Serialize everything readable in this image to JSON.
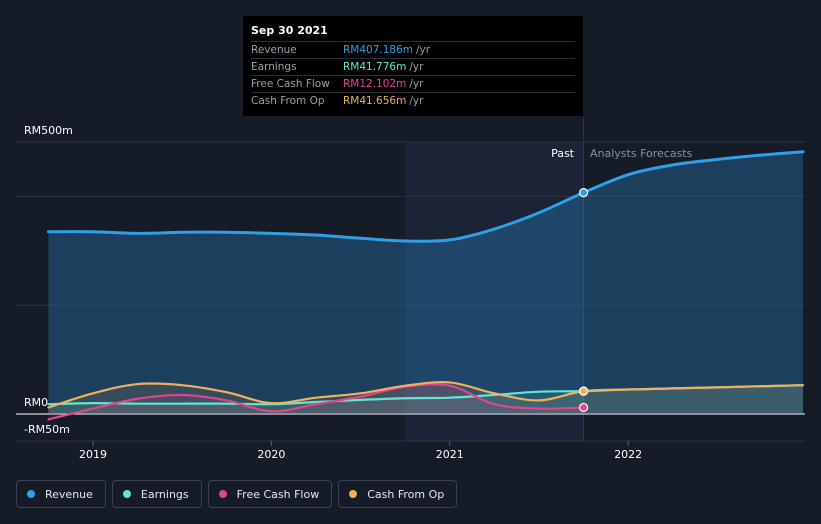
{
  "tooltip": {
    "date": "Sep 30 2021",
    "rows": [
      {
        "name": "Revenue",
        "value": "RM407.186m",
        "unit": "/yr",
        "color": "#2f9fe8"
      },
      {
        "name": "Earnings",
        "value": "RM41.776m",
        "unit": "/yr",
        "color": "#5ee8d4"
      },
      {
        "name": "Free Cash Flow",
        "value": "RM12.102m",
        "unit": "/yr",
        "color": "#e0468b"
      },
      {
        "name": "Cash From Op",
        "value": "RM41.656m",
        "unit": "/yr",
        "color": "#f0b05c"
      }
    ]
  },
  "labels": {
    "past": "Past",
    "forecast": "Analysts Forecasts"
  },
  "legend": [
    {
      "label": "Revenue",
      "color": "#2f9fe8"
    },
    {
      "label": "Earnings",
      "color": "#5ee8d4"
    },
    {
      "label": "Free Cash Flow",
      "color": "#e0468b"
    },
    {
      "label": "Cash From Op",
      "color": "#f0b05c"
    }
  ],
  "chart_data": {
    "type": "line",
    "y_tick_labels": [
      "RM500m",
      "RM0",
      "-RM50m"
    ],
    "x_tick_labels": [
      "2019",
      "2020",
      "2021",
      "2022"
    ],
    "ylim": [
      -50,
      500
    ],
    "past_end": "2021-09-30",
    "series": [
      {
        "name": "Revenue",
        "color": "#2f9fe8",
        "x": [
          2018.75,
          2019.0,
          2019.25,
          2019.5,
          2019.75,
          2020.0,
          2020.25,
          2020.5,
          2020.75,
          2021.0,
          2021.25,
          2021.5,
          2021.75,
          2022.0,
          2022.25,
          2022.5,
          2022.75,
          2022.98
        ],
        "y": [
          335,
          335,
          332,
          334,
          334,
          332,
          329,
          323,
          318,
          320,
          340,
          370,
          407,
          440,
          458,
          468,
          476,
          482
        ]
      },
      {
        "name": "Earnings",
        "color": "#5ee8d4",
        "x": [
          2018.75,
          2019.0,
          2019.25,
          2019.5,
          2019.75,
          2020.0,
          2020.25,
          2020.5,
          2020.75,
          2021.0,
          2021.25,
          2021.5,
          2021.75,
          2022.0,
          2022.5,
          2022.98
        ],
        "y": [
          18,
          20,
          19,
          19,
          19,
          18,
          22,
          26,
          29,
          30,
          35,
          41,
          42,
          45,
          49,
          53
        ]
      },
      {
        "name": "Free Cash Flow",
        "color": "#e0468b",
        "x": [
          2018.75,
          2019.0,
          2019.25,
          2019.5,
          2019.75,
          2020.0,
          2020.25,
          2020.5,
          2020.75,
          2021.0,
          2021.25,
          2021.5,
          2021.75
        ],
        "y": [
          -10,
          10,
          28,
          35,
          25,
          5,
          18,
          32,
          50,
          52,
          18,
          10,
          12
        ]
      },
      {
        "name": "Cash From Op",
        "color": "#f0b05c",
        "x": [
          2018.75,
          2019.0,
          2019.25,
          2019.5,
          2019.75,
          2020.0,
          2020.25,
          2020.5,
          2020.75,
          2021.0,
          2021.25,
          2021.5,
          2021.75,
          2022.0,
          2022.5,
          2022.98
        ],
        "y": [
          12,
          38,
          55,
          53,
          40,
          20,
          30,
          38,
          52,
          58,
          38,
          25,
          42,
          45,
          49,
          53
        ]
      }
    ]
  }
}
